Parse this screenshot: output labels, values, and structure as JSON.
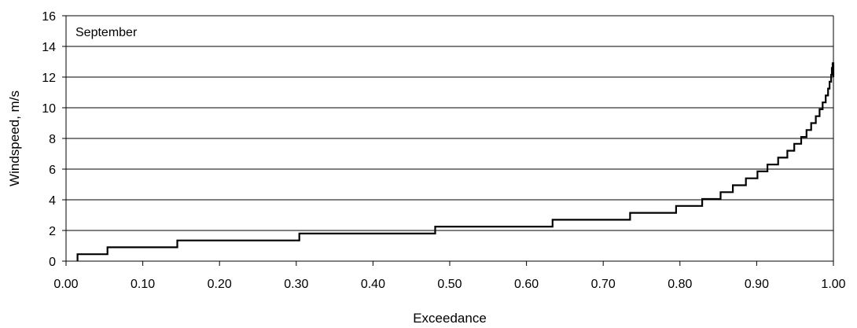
{
  "chart_data": {
    "type": "line",
    "title": "",
    "annotation": "September",
    "xlabel": "Exceedance",
    "ylabel": "Windspeed, m/s",
    "xlim": [
      0.0,
      1.0
    ],
    "ylim": [
      0,
      16
    ],
    "x_ticks": [
      "0.00",
      "0.10",
      "0.20",
      "0.30",
      "0.40",
      "0.50",
      "0.60",
      "0.70",
      "0.80",
      "0.90",
      "1.00"
    ],
    "y_ticks": [
      "0",
      "2",
      "4",
      "6",
      "8",
      "10",
      "12",
      "14",
      "16"
    ],
    "grid": "horizontal",
    "legend": "none",
    "line_style": "step",
    "series": [
      {
        "x": [
          0.015,
          0.015,
          0.054,
          0.054,
          0.145,
          0.145,
          0.304,
          0.304,
          0.481,
          0.481,
          0.634,
          0.634,
          0.735,
          0.735,
          0.795,
          0.795,
          0.829,
          0.829,
          0.853,
          0.853,
          0.869,
          0.869,
          0.886,
          0.886,
          0.901,
          0.901,
          0.914,
          0.914,
          0.928,
          0.928,
          0.94,
          0.94,
          0.949,
          0.949,
          0.958,
          0.958,
          0.965,
          0.965,
          0.971,
          0.971,
          0.977,
          0.977,
          0.982,
          0.982,
          0.986,
          0.986,
          0.99,
          0.99,
          0.993,
          0.993,
          0.995,
          0.995,
          0.997,
          0.997,
          0.998,
          0.998,
          0.999,
          0.999,
          1.0,
          1.0
        ],
        "y": [
          0.0,
          0.45,
          0.45,
          0.9,
          0.9,
          1.35,
          1.35,
          1.8,
          1.8,
          2.25,
          2.25,
          2.7,
          2.7,
          3.15,
          3.15,
          3.6,
          3.6,
          4.05,
          4.05,
          4.5,
          4.5,
          4.95,
          4.95,
          5.4,
          5.4,
          5.85,
          5.85,
          6.3,
          6.3,
          6.75,
          6.75,
          7.2,
          7.2,
          7.65,
          7.65,
          8.1,
          8.1,
          8.55,
          8.55,
          9.0,
          9.0,
          9.45,
          9.45,
          9.9,
          9.9,
          10.35,
          10.35,
          10.8,
          10.8,
          11.25,
          11.25,
          11.7,
          11.7,
          12.15,
          12.15,
          12.6,
          12.6,
          12.9,
          12.9,
          12.0
        ]
      }
    ]
  }
}
